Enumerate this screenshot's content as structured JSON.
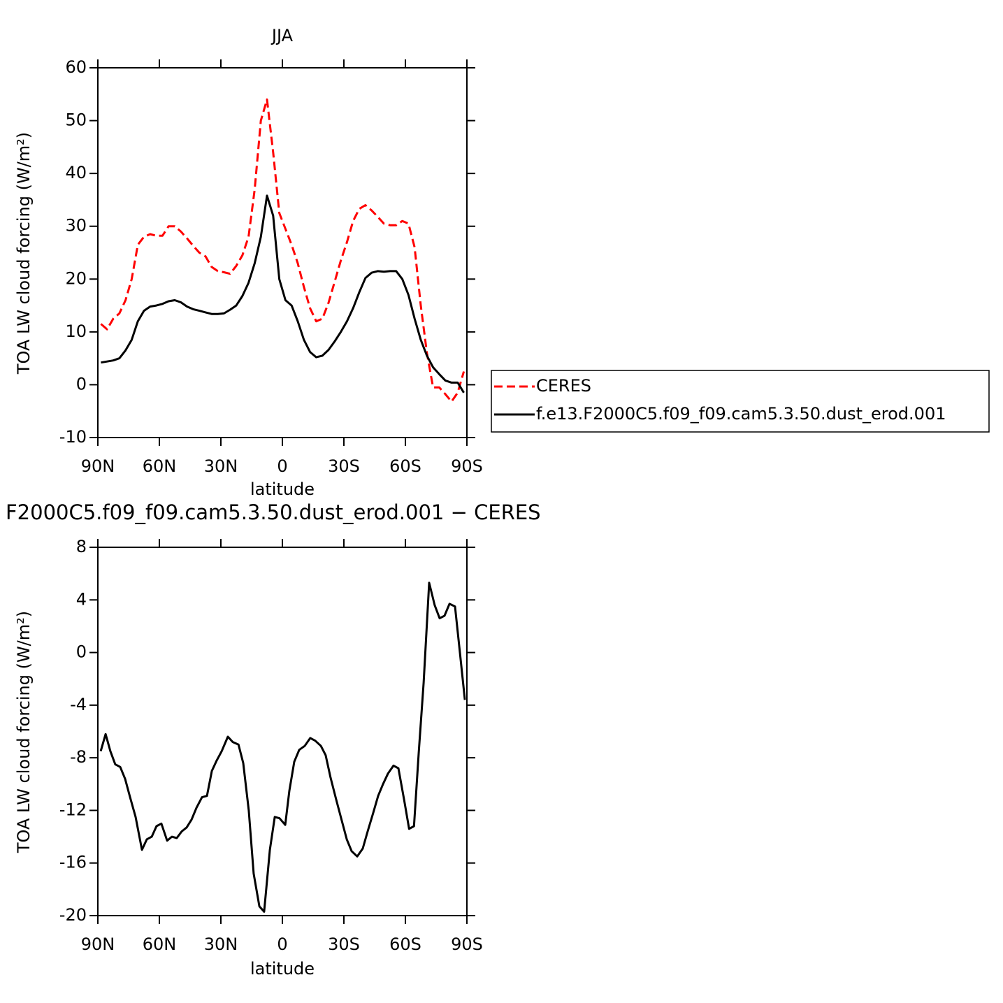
{
  "chart_data": [
    {
      "type": "line",
      "title": "JJA",
      "x_label": "latitude",
      "y_label": "TOA LW cloud forcing (W/m²)",
      "x": [
        88.5,
        85.5,
        82.5,
        79.5,
        76.5,
        73.5,
        70.5,
        67.5,
        64.5,
        61.5,
        58.5,
        55.5,
        52.5,
        49.5,
        46.5,
        43.5,
        40.5,
        37.5,
        34.5,
        31.5,
        28.5,
        25.5,
        22.5,
        19.5,
        16.5,
        13.5,
        10.5,
        7.5,
        4.5,
        1.5,
        -1.5,
        -4.5,
        -7.5,
        -10.5,
        -13.5,
        -16.5,
        -19.5,
        -22.5,
        -25.5,
        -28.5,
        -31.5,
        -34.5,
        -37.5,
        -40.5,
        -43.5,
        -46.5,
        -49.5,
        -52.5,
        -55.5,
        -58.5,
        -61.5,
        -64.5,
        -67.5,
        -70.5,
        -73.5,
        -76.5,
        -79.5,
        -82.5,
        -85.5,
        -88.5
      ],
      "series": [
        {
          "name": "CERES",
          "color": "#ff0000",
          "style": "dashed",
          "values": [
            11.5,
            10.5,
            12.5,
            13.5,
            16,
            20,
            26.5,
            28,
            28.5,
            28.2,
            28.2,
            30,
            30,
            29,
            27.7,
            26.3,
            25,
            24.3,
            22.3,
            21.5,
            21.3,
            21,
            22.5,
            24.5,
            28,
            37,
            50,
            54,
            44,
            32.5,
            29.5,
            26.5,
            23,
            18.5,
            14.5,
            12,
            12.5,
            15.5,
            19.5,
            23.5,
            27,
            31,
            33.3,
            34,
            33,
            31.8,
            30.5,
            30.2,
            30.2,
            31,
            30.5,
            26,
            15,
            6,
            -0.5,
            -0.5,
            -1.8,
            -3.2,
            -1.5,
            2.5
          ]
        },
        {
          "name": "f.e13.F2000C5.f09_f09.cam5.3.50.dust_erod.001",
          "color": "#000000",
          "style": "solid",
          "values": [
            4.2,
            4.4,
            4.6,
            5,
            6.5,
            8.5,
            12,
            14,
            14.8,
            15,
            15.3,
            15.8,
            16,
            15.6,
            14.8,
            14.3,
            14,
            13.7,
            13.4,
            13.4,
            13.5,
            14.2,
            15,
            16.8,
            19.3,
            23,
            28,
            35.8,
            32,
            20,
            16,
            15,
            12,
            8.5,
            6.2,
            5.2,
            5.5,
            6.6,
            8.2,
            10,
            12,
            14.5,
            17.5,
            20.2,
            21.2,
            21.5,
            21.4,
            21.5,
            21.5,
            20,
            17,
            12.5,
            8.5,
            5.5,
            3.3,
            2,
            0.8,
            0.4,
            0.4,
            -1.5
          ]
        }
      ],
      "xlim": [
        90,
        -90
      ],
      "xticks": [
        {
          "value": 90,
          "label": "90N"
        },
        {
          "value": 60,
          "label": "60N"
        },
        {
          "value": 30,
          "label": "30N"
        },
        0,
        {
          "value": -30,
          "label": "30S"
        },
        {
          "value": -60,
          "label": "60S"
        },
        {
          "value": -90,
          "label": "90S"
        }
      ],
      "ylim": [
        -10,
        60
      ],
      "yticks": [
        -10,
        0,
        10,
        20,
        30,
        40,
        50,
        60
      ],
      "legend": "right"
    },
    {
      "type": "line",
      "title": "F2000C5.f09_f09.cam5.3.50.dust_erod.001 − CERES",
      "x_label": "latitude",
      "y_label": "TOA LW cloud forcing (W/m²)",
      "x": [
        88.6,
        86.2,
        83.9,
        81.5,
        79.1,
        76.7,
        74.3,
        71.6,
        68.5,
        66.1,
        63.7,
        61.4,
        59.0,
        56.2,
        53.9,
        51.5,
        49.1,
        46.7,
        44.3,
        41.9,
        39.2,
        36.8,
        34.4,
        32.0,
        29.6,
        26.6,
        24.2,
        21.4,
        19.1,
        16.4,
        14.0,
        11.2,
        8.9,
        6.1,
        3.7,
        1.4,
        -1.4,
        -3.4,
        -5.8,
        -8.2,
        -10.9,
        -13.6,
        -16.0,
        -18.8,
        -21.1,
        -23.5,
        -26.3,
        -29.0,
        -31.4,
        -33.8,
        -36.5,
        -39.2,
        -41.6,
        -44.3,
        -46.7,
        -49.1,
        -51.5,
        -54.2,
        -56.6,
        -59.4,
        -61.8,
        -64.2,
        -66.5,
        -68.9,
        -71.6,
        -74.3,
        -76.7,
        -79.1,
        -81.5,
        -84.2,
        -86.6,
        -89.0
      ],
      "series": [
        {
          "color": "#000000",
          "style": "solid",
          "values": [
            -7.5,
            -6.2,
            -7.5,
            -8.5,
            -8.7,
            -9.6,
            -11,
            -12.5,
            -15,
            -14.2,
            -14,
            -13.2,
            -13,
            -14.3,
            -14,
            -14.1,
            -13.6,
            -13.3,
            -12.7,
            -11.8,
            -11,
            -10.9,
            -9,
            -8.2,
            -7.5,
            -6.4,
            -6.8,
            -7,
            -8.4,
            -12,
            -16.8,
            -19.3,
            -19.7,
            -15,
            -12.5,
            -12.6,
            -13.1,
            -10.5,
            -8.3,
            -7.4,
            -7.1,
            -6.5,
            -6.7,
            -7.1,
            -7.8,
            -9.5,
            -11.2,
            -12.8,
            -14.2,
            -15.1,
            -15.5,
            -14.9,
            -13.6,
            -12.2,
            -10.9,
            -10,
            -9.2,
            -8.6,
            -8.8,
            -11.2,
            -13.4,
            -13.2,
            -7.6,
            -2.3,
            5.3,
            3.6,
            2.6,
            2.8,
            3.7,
            3.5,
            0,
            -3.6
          ]
        }
      ],
      "xlim": [
        90,
        -90
      ],
      "xticks": [
        {
          "value": 90,
          "label": "90N"
        },
        {
          "value": 60,
          "label": "60N"
        },
        {
          "value": 30,
          "label": "30N"
        },
        0,
        {
          "value": -30,
          "label": "30S"
        },
        {
          "value": -60,
          "label": "60S"
        },
        {
          "value": -90,
          "label": "90S"
        }
      ],
      "ylim": [
        -20,
        8
      ],
      "yticks": [
        -20,
        -16,
        -12,
        -8,
        -4,
        0,
        4,
        8
      ]
    }
  ]
}
